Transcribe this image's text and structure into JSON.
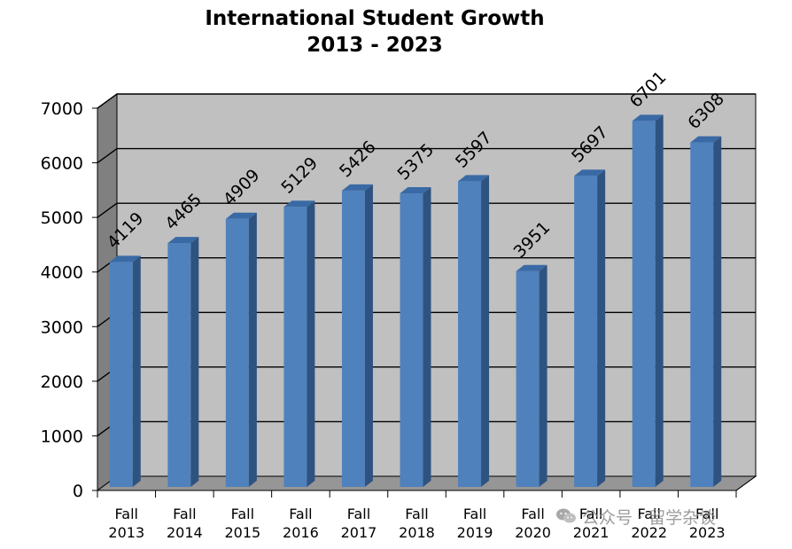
{
  "chart_data": {
    "type": "bar",
    "title": "International Student Growth",
    "subtitle": "2013 - 2023",
    "xlabel": "",
    "ylabel": "",
    "categories": [
      [
        "Fall",
        "2013"
      ],
      [
        "Fall",
        "2014"
      ],
      [
        "Fall",
        "2015"
      ],
      [
        "Fall",
        "2016"
      ],
      [
        "Fall",
        "2017"
      ],
      [
        "Fall",
        "2018"
      ],
      [
        "Fall",
        "2019"
      ],
      [
        "Fall",
        "2020"
      ],
      [
        "Fall",
        "2021"
      ],
      [
        "Fall",
        "2022"
      ],
      [
        "Fall",
        "2023"
      ]
    ],
    "values": [
      4119,
      4465,
      4909,
      5129,
      5426,
      5375,
      5597,
      3951,
      5697,
      6701,
      6308
    ],
    "ylim": [
      0,
      7000
    ],
    "yticks": [
      0,
      1000,
      2000,
      3000,
      4000,
      5000,
      6000,
      7000
    ],
    "grid": true,
    "legend": "none",
    "bar_style": "3d",
    "colors": {
      "bar_front": "#4f81bd",
      "bar_side": "#2f5380",
      "bar_top": "#3a6aa5",
      "plot_back": "#c0c0c0",
      "plot_side_wall": "#808080",
      "plot_floor": "#969696",
      "gridline": "#000000"
    }
  },
  "watermark": {
    "text": "公众号 · 留学杂谈",
    "icon": "wechat-icon"
  }
}
